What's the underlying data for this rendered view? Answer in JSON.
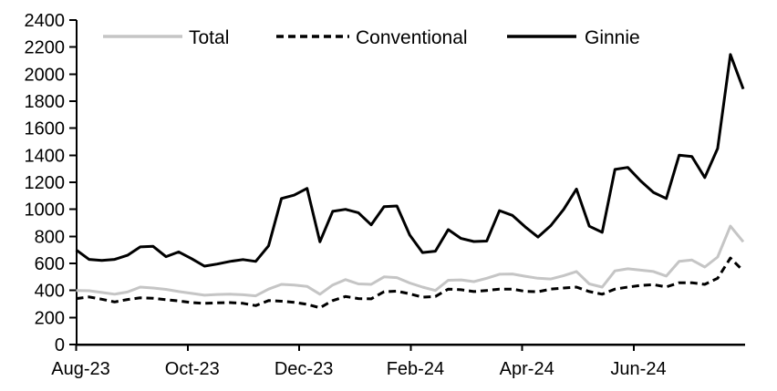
{
  "chart_data": {
    "type": "line",
    "title": "",
    "xlabel": "",
    "ylabel": "",
    "ylim": [
      0,
      2400
    ],
    "y_ticks": [
      0,
      200,
      400,
      600,
      800,
      1000,
      1200,
      1400,
      1600,
      1800,
      2000,
      2200,
      2400
    ],
    "x_tick_labels": [
      "Aug-23",
      "Oct-23",
      "Dec-23",
      "Feb-24",
      "Apr-24",
      "Jun-24"
    ],
    "x_range_note": "weekly data, Aug-2023 through Aug-2024",
    "grid": false,
    "legend_position": "top",
    "background_color": "#ffffff",
    "axis_color": "#000000",
    "series": [
      {
        "name": "Total",
        "color": "#c5c5c5",
        "dash": "solid",
        "values": [
          400,
          398,
          385,
          372,
          388,
          425,
          418,
          408,
          392,
          378,
          365,
          370,
          372,
          368,
          360,
          410,
          445,
          440,
          430,
          372,
          440,
          480,
          448,
          445,
          500,
          495,
          455,
          425,
          400,
          475,
          478,
          465,
          490,
          520,
          522,
          505,
          490,
          485,
          510,
          540,
          448,
          425,
          545,
          560,
          550,
          540,
          506,
          615,
          625,
          573,
          647,
          876,
          760
        ]
      },
      {
        "name": "Conventional",
        "color": "#000000",
        "dash": "dashed",
        "values": [
          340,
          352,
          335,
          315,
          333,
          345,
          342,
          332,
          322,
          310,
          305,
          308,
          310,
          305,
          288,
          325,
          320,
          312,
          297,
          272,
          325,
          355,
          340,
          338,
          390,
          395,
          375,
          350,
          355,
          410,
          405,
          392,
          400,
          410,
          410,
          393,
          390,
          410,
          418,
          425,
          392,
          372,
          410,
          425,
          437,
          443,
          426,
          457,
          457,
          445,
          490,
          640,
          545
        ]
      },
      {
        "name": "Ginnie",
        "color": "#000000",
        "dash": "solid",
        "values": [
          700,
          630,
          622,
          630,
          660,
          722,
          726,
          650,
          685,
          635,
          580,
          595,
          615,
          628,
          615,
          730,
          1080,
          1105,
          1155,
          760,
          985,
          1000,
          975,
          885,
          1020,
          1025,
          810,
          680,
          690,
          850,
          785,
          762,
          765,
          990,
          955,
          870,
          795,
          880,
          1000,
          1150,
          875,
          830,
          1295,
          1310,
          1210,
          1125,
          1080,
          1400,
          1390,
          1235,
          1450,
          2145,
          1890
        ]
      }
    ]
  }
}
